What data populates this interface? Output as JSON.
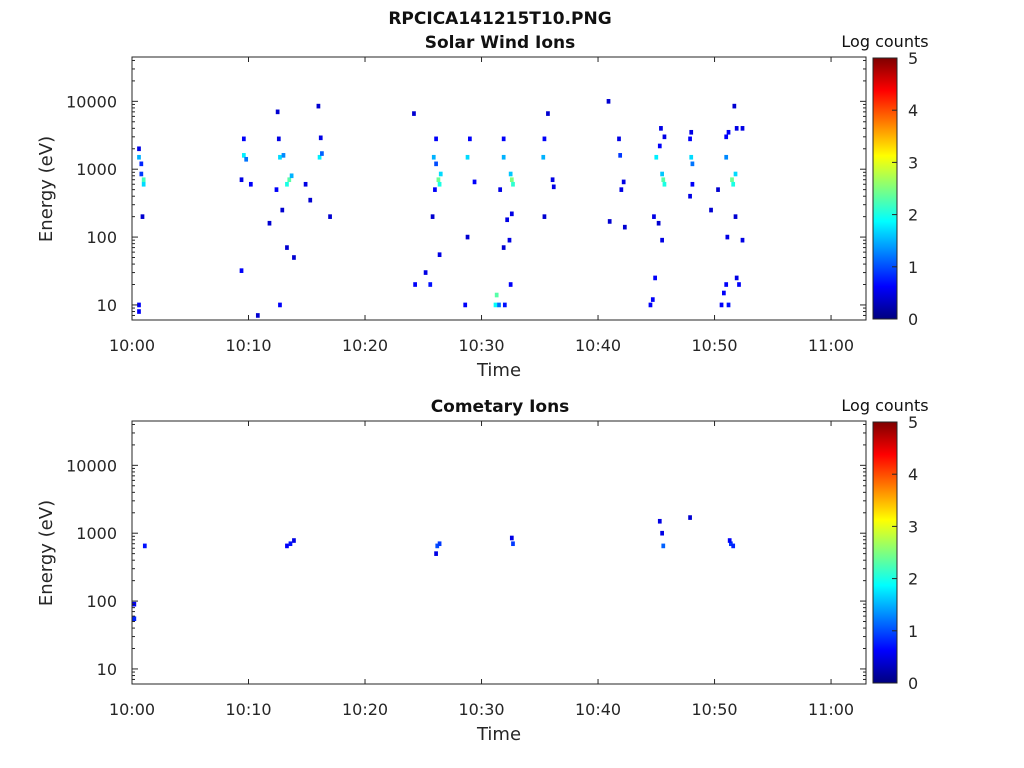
{
  "figure": {
    "title": "RPCICA141215T10.PNG"
  },
  "colormap": {
    "name": "jet",
    "stops": [
      "#00007f",
      "#0000ff",
      "#007fff",
      "#00ffff",
      "#7fff7f",
      "#ffff00",
      "#ff7f00",
      "#ff0000",
      "#7f0000"
    ]
  },
  "chart_data": [
    {
      "type": "heatmap",
      "title": "Solar Wind Ions",
      "xlabel": "Time",
      "ylabel": "Energy (eV)",
      "x_unit": "minutes after 10:00",
      "xlim": [
        "10:00",
        "11:03"
      ],
      "xticks": [
        "10:00",
        "10:10",
        "10:20",
        "10:30",
        "10:40",
        "10:50",
        "11:00"
      ],
      "ylim": [
        6,
        45000
      ],
      "yscale": "log",
      "yticks": [
        "10",
        "100",
        "1000",
        "10000"
      ],
      "colorbar": {
        "label": "Log counts",
        "range": [
          0,
          5
        ],
        "ticks": [
          "0",
          "1",
          "2",
          "3",
          "4",
          "5"
        ],
        "position": "right"
      },
      "cells": [
        [
          0.6,
          1500,
          1.5
        ],
        [
          0.8,
          1200,
          0.8
        ],
        [
          1.0,
          700,
          2.2
        ],
        [
          1.0,
          600,
          1.7
        ],
        [
          0.8,
          850,
          0.9
        ],
        [
          0.6,
          10,
          0.6
        ],
        [
          0.6,
          8,
          0.6
        ],
        [
          0.9,
          200,
          0.4
        ],
        [
          0.6,
          2000,
          0.5
        ],
        [
          9.6,
          1600,
          1.8
        ],
        [
          9.8,
          1400,
          1.2
        ],
        [
          9.6,
          2800,
          0.6
        ],
        [
          9.4,
          700,
          0.5
        ],
        [
          10.2,
          600,
          0.6
        ],
        [
          9.4,
          32,
          0.6
        ],
        [
          10.8,
          7,
          0.4
        ],
        [
          12.7,
          1500,
          1.7
        ],
        [
          13.0,
          1600,
          1.3
        ],
        [
          13.5,
          700,
          2.3
        ],
        [
          13.3,
          600,
          2.0
        ],
        [
          13.7,
          800,
          1.5
        ],
        [
          12.6,
          2800,
          0.5
        ],
        [
          12.4,
          500,
          0.6
        ],
        [
          12.7,
          10,
          0.6
        ],
        [
          12.5,
          7000,
          0.4
        ],
        [
          12.9,
          250,
          0.4
        ],
        [
          13.3,
          70,
          0.4
        ],
        [
          13.9,
          50,
          0.4
        ],
        [
          11.8,
          160,
          0.4
        ],
        [
          16.1,
          1500,
          1.8
        ],
        [
          16.3,
          1700,
          1.1
        ],
        [
          16.2,
          2900,
          0.5
        ],
        [
          16.0,
          8500,
          0.4
        ],
        [
          17.0,
          200,
          0.4
        ],
        [
          15.3,
          350,
          0.4
        ],
        [
          14.9,
          600,
          0.5
        ],
        [
          24.2,
          6600,
          0.4
        ],
        [
          24.3,
          20,
          0.6
        ],
        [
          25.6,
          20,
          0.7
        ],
        [
          25.2,
          30,
          0.5
        ],
        [
          25.9,
          1500,
          1.5
        ],
        [
          26.1,
          1200,
          1.0
        ],
        [
          26.3,
          700,
          2.4
        ],
        [
          26.4,
          600,
          2.0
        ],
        [
          26.5,
          850,
          1.7
        ],
        [
          26.1,
          2800,
          0.6
        ],
        [
          26.0,
          500,
          0.6
        ],
        [
          25.8,
          200,
          0.4
        ],
        [
          26.4,
          55,
          0.5
        ],
        [
          28.8,
          1500,
          1.7
        ],
        [
          29.0,
          2800,
          0.6
        ],
        [
          29.4,
          650,
          0.6
        ],
        [
          28.8,
          100,
          0.4
        ],
        [
          28.6,
          10,
          0.6
        ],
        [
          31.9,
          1500,
          1.5
        ],
        [
          32.6,
          700,
          2.5
        ],
        [
          32.7,
          600,
          2.1
        ],
        [
          32.5,
          850,
          1.6
        ],
        [
          31.9,
          2800,
          0.6
        ],
        [
          31.2,
          10,
          1.9
        ],
        [
          31.3,
          14,
          2.3
        ],
        [
          31.5,
          10,
          1.2
        ],
        [
          32.0,
          10,
          0.7
        ],
        [
          32.5,
          20,
          0.6
        ],
        [
          32.2,
          180,
          0.5
        ],
        [
          32.6,
          220,
          0.5
        ],
        [
          32.4,
          90,
          0.5
        ],
        [
          31.9,
          70,
          0.4
        ],
        [
          31.6,
          500,
          0.5
        ],
        [
          35.3,
          1500,
          1.5
        ],
        [
          35.4,
          2800,
          0.6
        ],
        [
          35.7,
          6600,
          0.4
        ],
        [
          35.4,
          200,
          0.4
        ],
        [
          36.1,
          700,
          0.5
        ],
        [
          36.2,
          550,
          0.5
        ],
        [
          40.9,
          10000,
          0.4
        ],
        [
          41.9,
          1600,
          0.9
        ],
        [
          41.8,
          2800,
          0.5
        ],
        [
          42.2,
          650,
          0.5
        ],
        [
          42.0,
          500,
          0.5
        ],
        [
          41.0,
          170,
          0.4
        ],
        [
          42.3,
          140,
          0.4
        ],
        [
          45.0,
          1500,
          1.8
        ],
        [
          45.6,
          700,
          2.3
        ],
        [
          45.7,
          600,
          2.0
        ],
        [
          45.5,
          850,
          1.6
        ],
        [
          45.4,
          4000,
          0.5
        ],
        [
          45.7,
          3000,
          0.5
        ],
        [
          45.3,
          2200,
          0.6
        ],
        [
          44.9,
          25,
          0.6
        ],
        [
          44.7,
          12,
          0.6
        ],
        [
          44.5,
          10,
          0.6
        ],
        [
          44.8,
          200,
          0.5
        ],
        [
          45.2,
          160,
          0.4
        ],
        [
          45.5,
          90,
          0.5
        ],
        [
          48.0,
          1500,
          1.7
        ],
        [
          48.1,
          1200,
          1.2
        ],
        [
          47.9,
          2800,
          0.6
        ],
        [
          48.0,
          3500,
          0.5
        ],
        [
          48.1,
          600,
          0.6
        ],
        [
          47.9,
          400,
          0.5
        ],
        [
          49.7,
          250,
          0.4
        ],
        [
          50.3,
          500,
          0.4
        ],
        [
          51.0,
          1500,
          1.3
        ],
        [
          51.5,
          700,
          2.4
        ],
        [
          51.6,
          600,
          2.0
        ],
        [
          51.8,
          850,
          1.7
        ],
        [
          51.2,
          3500,
          0.6
        ],
        [
          51.0,
          3000,
          0.6
        ],
        [
          51.9,
          4000,
          0.5
        ],
        [
          52.4,
          4000,
          0.5
        ],
        [
          51.7,
          8500,
          0.4
        ],
        [
          50.6,
          10,
          0.6
        ],
        [
          50.8,
          15,
          0.6
        ],
        [
          51.0,
          20,
          0.6
        ],
        [
          51.2,
          10,
          0.7
        ],
        [
          51.9,
          25,
          0.5
        ],
        [
          52.1,
          20,
          0.6
        ],
        [
          51.1,
          100,
          0.5
        ],
        [
          52.4,
          90,
          0.5
        ],
        [
          51.8,
          200,
          0.4
        ]
      ]
    },
    {
      "type": "heatmap",
      "title": "Cometary Ions",
      "xlabel": "Time",
      "ylabel": "Energy (eV)",
      "x_unit": "minutes after 10:00",
      "xlim": [
        "10:00",
        "11:03"
      ],
      "xticks": [
        "10:00",
        "10:10",
        "10:20",
        "10:30",
        "10:40",
        "10:50",
        "11:00"
      ],
      "ylim": [
        6,
        45000
      ],
      "yscale": "log",
      "yticks": [
        "10",
        "100",
        "1000",
        "10000"
      ],
      "colorbar": {
        "label": "Log counts",
        "range": [
          0,
          5
        ],
        "ticks": [
          "0",
          "1",
          "2",
          "3",
          "4",
          "5"
        ],
        "position": "right"
      },
      "cells": [
        [
          0.2,
          90,
          0.6
        ],
        [
          0.2,
          55,
          0.8
        ],
        [
          1.1,
          650,
          0.7
        ],
        [
          13.6,
          700,
          0.7
        ],
        [
          13.3,
          650,
          0.6
        ],
        [
          13.9,
          780,
          0.5
        ],
        [
          26.2,
          650,
          1.0
        ],
        [
          26.4,
          700,
          0.9
        ],
        [
          26.1,
          500,
          0.5
        ],
        [
          32.7,
          700,
          0.9
        ],
        [
          32.6,
          850,
          0.5
        ],
        [
          45.6,
          650,
          1.1
        ],
        [
          45.3,
          1500,
          0.5
        ],
        [
          45.5,
          1000,
          0.5
        ],
        [
          47.9,
          1700,
          0.4
        ],
        [
          51.4,
          700,
          0.9
        ],
        [
          51.6,
          650,
          0.8
        ],
        [
          51.3,
          780,
          0.6
        ]
      ]
    }
  ]
}
